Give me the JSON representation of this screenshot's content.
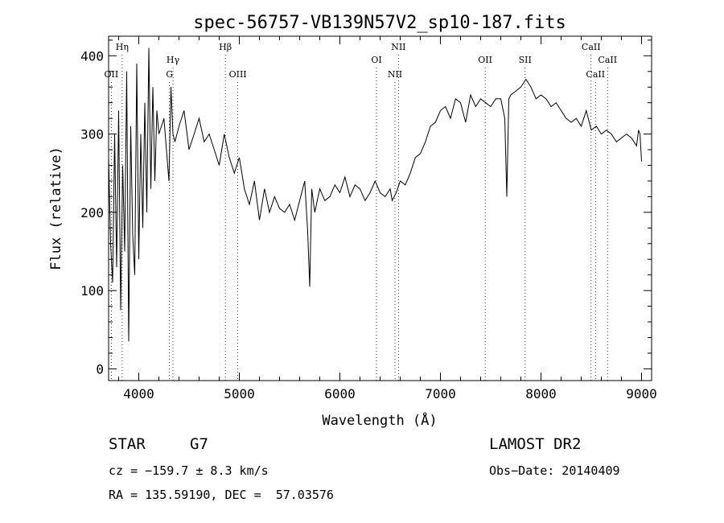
{
  "chart_data": {
    "type": "line",
    "title": "spec-56757-VB139N57V2_sp10-187.fits",
    "xlabel": "Wavelength (Å)",
    "ylabel": "Flux (relative)",
    "xlim": [
      3700,
      9100
    ],
    "ylim": [
      -15,
      425
    ],
    "xticks": [
      4000,
      5000,
      6000,
      7000,
      8000,
      9000
    ],
    "yticks": [
      0,
      100,
      200,
      300,
      400
    ],
    "grid": false,
    "series": [
      {
        "x": [
          3700,
          3720,
          3740,
          3760,
          3780,
          3800,
          3820,
          3840,
          3860,
          3880,
          3900,
          3920,
          3940,
          3960,
          3980,
          4000,
          4020,
          4040,
          4060,
          4080,
          4100,
          4120,
          4140,
          4160,
          4180,
          4200,
          4250,
          4300,
          4320,
          4340,
          4360,
          4400,
          4450,
          4500,
          4550,
          4600,
          4650,
          4700,
          4750,
          4800,
          4850,
          4900,
          4950,
          5000,
          5050,
          5100,
          5150,
          5200,
          5250,
          5300,
          5350,
          5400,
          5450,
          5500,
          5550,
          5600,
          5650,
          5680,
          5700,
          5720,
          5750,
          5800,
          5850,
          5900,
          5950,
          6000,
          6050,
          6100,
          6150,
          6200,
          6250,
          6300,
          6350,
          6400,
          6450,
          6500,
          6520,
          6560,
          6600,
          6650,
          6700,
          6750,
          6800,
          6850,
          6900,
          6950,
          7000,
          7050,
          7100,
          7150,
          7200,
          7250,
          7300,
          7350,
          7400,
          7450,
          7500,
          7550,
          7600,
          7640,
          7660,
          7680,
          7700,
          7750,
          7800,
          7850,
          7900,
          7950,
          8000,
          8050,
          8100,
          8150,
          8200,
          8250,
          8300,
          8350,
          8400,
          8450,
          8500,
          8550,
          8600,
          8650,
          8700,
          8750,
          8800,
          8850,
          8900,
          8950,
          8970,
          8985,
          9000
        ],
        "values": [
          270,
          160,
          110,
          300,
          130,
          330,
          75,
          260,
          150,
          380,
          35,
          310,
          170,
          120,
          390,
          140,
          300,
          180,
          340,
          200,
          410,
          230,
          360,
          240,
          330,
          300,
          320,
          240,
          360,
          300,
          290,
          310,
          330,
          280,
          300,
          320,
          290,
          300,
          280,
          260,
          300,
          270,
          250,
          270,
          230,
          210,
          240,
          190,
          230,
          200,
          220,
          205,
          200,
          210,
          190,
          215,
          240,
          175,
          105,
          230,
          200,
          230,
          215,
          220,
          235,
          225,
          245,
          220,
          235,
          230,
          215,
          225,
          240,
          225,
          220,
          230,
          215,
          225,
          240,
          235,
          250,
          270,
          275,
          290,
          310,
          315,
          330,
          335,
          320,
          345,
          340,
          315,
          350,
          335,
          345,
          340,
          335,
          345,
          345,
          320,
          220,
          345,
          350,
          355,
          360,
          370,
          360,
          345,
          350,
          345,
          335,
          340,
          330,
          320,
          315,
          320,
          310,
          330,
          305,
          310,
          300,
          305,
          300,
          290,
          295,
          300,
          295,
          285,
          305,
          300,
          265
        ]
      }
    ],
    "lines": [
      {
        "label": "Hη",
        "x": 3835,
        "row": 1
      },
      {
        "label": "OII",
        "x": 3727,
        "row": 3
      },
      {
        "label": "Hγ",
        "x": 4340,
        "row": 2
      },
      {
        "label": "G",
        "x": 4305,
        "row": 3
      },
      {
        "label": "Hβ",
        "x": 4861,
        "row": 1
      },
      {
        "label": "OIII",
        "x": 4985,
        "row": 3
      },
      {
        "label": "NII",
        "x": 6583,
        "row": 1
      },
      {
        "label": "OI",
        "x": 6364,
        "row": 2
      },
      {
        "label": "NII",
        "x": 6548,
        "row": 3
      },
      {
        "label": "OII",
        "x": 7445,
        "row": 2
      },
      {
        "label": "SII",
        "x": 7842,
        "row": 2
      },
      {
        "label": "CaII",
        "x": 8498,
        "row": 1
      },
      {
        "label": "CaII",
        "x": 8662,
        "row": 2
      },
      {
        "label": "CaII",
        "x": 8542,
        "row": 3
      }
    ]
  },
  "info": {
    "object_class": "STAR",
    "subclass": "G7",
    "survey": "LAMOST DR2",
    "cz": "cz = −159.7 ± 8.3 km/s",
    "obs_date": "Obs−Date: 20140409",
    "coords": "RA = 135.59190, DEC =  57.03576"
  }
}
